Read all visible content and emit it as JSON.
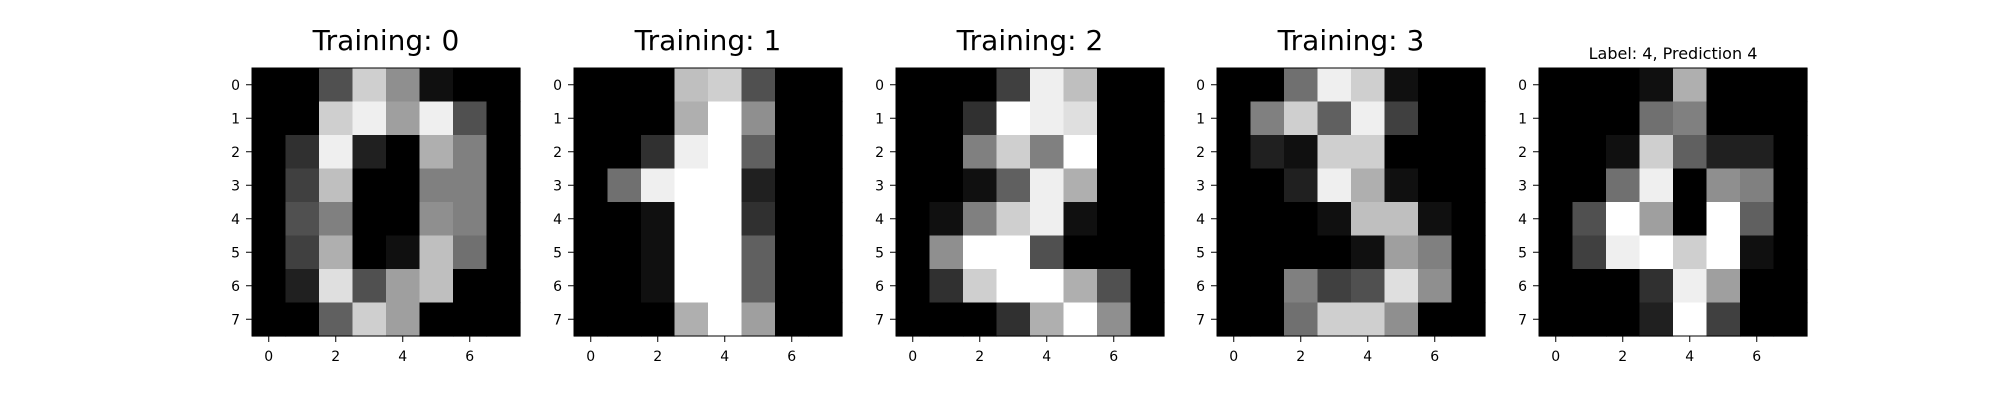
{
  "figure": {
    "background": "#ffffff"
  },
  "chart_data": [
    {
      "type": "heatmap",
      "title": "Training: 0",
      "colormap": "gray",
      "vmin": 0,
      "vmax": 16,
      "x_ticks": [
        "0",
        "2",
        "4",
        "6"
      ],
      "y_ticks": [
        "0",
        "1",
        "2",
        "3",
        "4",
        "5",
        "6",
        "7"
      ],
      "values": [
        [
          0,
          0,
          5,
          13,
          9,
          1,
          0,
          0
        ],
        [
          0,
          0,
          13,
          15,
          10,
          15,
          5,
          0
        ],
        [
          0,
          3,
          15,
          2,
          0,
          11,
          8,
          0
        ],
        [
          0,
          4,
          12,
          0,
          0,
          8,
          8,
          0
        ],
        [
          0,
          5,
          8,
          0,
          0,
          9,
          8,
          0
        ],
        [
          0,
          4,
          11,
          0,
          1,
          12,
          7,
          0
        ],
        [
          0,
          2,
          14,
          5,
          10,
          12,
          0,
          0
        ],
        [
          0,
          0,
          6,
          13,
          10,
          0,
          0,
          0
        ]
      ]
    },
    {
      "type": "heatmap",
      "title": "Training: 1",
      "colormap": "gray",
      "vmin": 0,
      "vmax": 16,
      "x_ticks": [
        "0",
        "2",
        "4",
        "6"
      ],
      "y_ticks": [
        "0",
        "1",
        "2",
        "3",
        "4",
        "5",
        "6",
        "7"
      ],
      "values": [
        [
          0,
          0,
          0,
          12,
          13,
          5,
          0,
          0
        ],
        [
          0,
          0,
          0,
          11,
          16,
          9,
          0,
          0
        ],
        [
          0,
          0,
          3,
          15,
          16,
          6,
          0,
          0
        ],
        [
          0,
          7,
          15,
          16,
          16,
          2,
          0,
          0
        ],
        [
          0,
          0,
          1,
          16,
          16,
          3,
          0,
          0
        ],
        [
          0,
          0,
          1,
          16,
          16,
          6,
          0,
          0
        ],
        [
          0,
          0,
          1,
          16,
          16,
          6,
          0,
          0
        ],
        [
          0,
          0,
          0,
          11,
          16,
          10,
          0,
          0
        ]
      ]
    },
    {
      "type": "heatmap",
      "title": "Training: 2",
      "colormap": "gray",
      "vmin": 0,
      "vmax": 16,
      "x_ticks": [
        "0",
        "2",
        "4",
        "6"
      ],
      "y_ticks": [
        "0",
        "1",
        "2",
        "3",
        "4",
        "5",
        "6",
        "7"
      ],
      "values": [
        [
          0,
          0,
          0,
          4,
          15,
          12,
          0,
          0
        ],
        [
          0,
          0,
          3,
          16,
          15,
          14,
          0,
          0
        ],
        [
          0,
          0,
          8,
          13,
          8,
          16,
          0,
          0
        ],
        [
          0,
          0,
          1,
          6,
          15,
          11,
          0,
          0
        ],
        [
          0,
          1,
          8,
          13,
          15,
          1,
          0,
          0
        ],
        [
          0,
          9,
          16,
          16,
          5,
          0,
          0,
          0
        ],
        [
          0,
          3,
          13,
          16,
          16,
          11,
          5,
          0
        ],
        [
          0,
          0,
          0,
          3,
          11,
          16,
          9,
          0
        ]
      ]
    },
    {
      "type": "heatmap",
      "title": "Training: 3",
      "colormap": "gray",
      "vmin": 0,
      "vmax": 16,
      "x_ticks": [
        "0",
        "2",
        "4",
        "6"
      ],
      "y_ticks": [
        "0",
        "1",
        "2",
        "3",
        "4",
        "5",
        "6",
        "7"
      ],
      "values": [
        [
          0,
          0,
          7,
          15,
          13,
          1,
          0,
          0
        ],
        [
          0,
          8,
          13,
          6,
          15,
          4,
          0,
          0
        ],
        [
          0,
          2,
          1,
          13,
          13,
          0,
          0,
          0
        ],
        [
          0,
          0,
          2,
          15,
          11,
          1,
          0,
          0
        ],
        [
          0,
          0,
          0,
          1,
          12,
          12,
          1,
          0
        ],
        [
          0,
          0,
          0,
          0,
          1,
          10,
          8,
          0
        ],
        [
          0,
          0,
          8,
          4,
          5,
          14,
          9,
          0
        ],
        [
          0,
          0,
          7,
          13,
          13,
          9,
          0,
          0
        ]
      ]
    },
    {
      "type": "heatmap",
      "title": "Label: 4, Prediction 4",
      "colormap": "gray",
      "vmin": 0,
      "vmax": 16,
      "x_ticks": [
        "0",
        "2",
        "4",
        "6"
      ],
      "y_ticks": [
        "0",
        "1",
        "2",
        "3",
        "4",
        "5",
        "6",
        "7"
      ],
      "values": [
        [
          0,
          0,
          0,
          1,
          11,
          0,
          0,
          0
        ],
        [
          0,
          0,
          0,
          7,
          8,
          0,
          0,
          0
        ],
        [
          0,
          0,
          1,
          13,
          6,
          2,
          2,
          0
        ],
        [
          0,
          0,
          7,
          15,
          0,
          9,
          8,
          0
        ],
        [
          0,
          5,
          16,
          10,
          0,
          16,
          6,
          0
        ],
        [
          0,
          4,
          15,
          16,
          13,
          16,
          1,
          0
        ],
        [
          0,
          0,
          0,
          3,
          15,
          10,
          0,
          0
        ],
        [
          0,
          0,
          0,
          2,
          16,
          4,
          0,
          0
        ]
      ]
    }
  ]
}
